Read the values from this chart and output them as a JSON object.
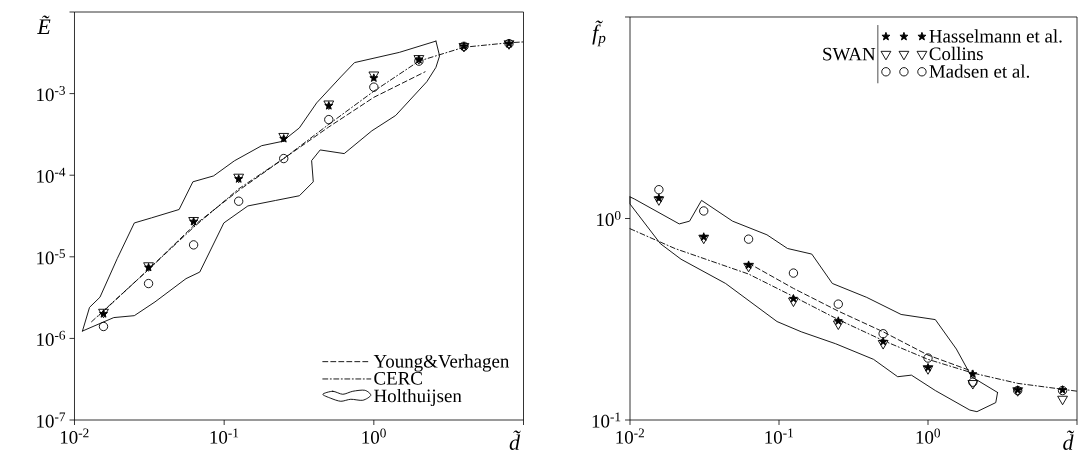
{
  "chart_data": [
    {
      "type": "scatter",
      "xlabel": "d̃",
      "ylabel": "Ẽ",
      "log": "xy",
      "legend": "bottom right",
      "xlim": [
        0.01,
        10
      ],
      "ylim": [
        1e-07,
        0.01
      ],
      "xticks": [
        {
          "value": 0.01,
          "label": "10$^{-2}$"
        },
        {
          "value": 0.1,
          "label": "10$^{-1}$"
        },
        {
          "value": 1,
          "label": "10$^{0}$"
        },
        {
          "value": 10,
          "label": null
        }
      ],
      "yticks": [
        {
          "value": 1e-07,
          "label": "10$^{-7}$"
        },
        {
          "value": 1e-06,
          "label": "10$^{-6}$"
        },
        {
          "value": 1e-05,
          "label": "10$^{-5}$"
        },
        {
          "value": 0.0001,
          "label": "10$^{-4}$"
        },
        {
          "value": 0.001,
          "label": "10$^{-3}$"
        },
        {
          "value": 0.01,
          "label": null
        }
      ],
      "x": [
        0.015625,
        0.03125,
        0.0625,
        0.125,
        0.25,
        0.5,
        1,
        2,
        4,
        8
      ],
      "series": [
        {
          "name": "Young&Verhagen",
          "type": "line",
          "color": "#000000",
          "line_style": "dashed",
          "marker": "none",
          "x": [
            0.0145,
            0.03125,
            0.0625,
            0.125,
            0.25,
            0.5,
            1,
            2.2
          ],
          "values": [
            1.9e-06,
            7e-06,
            2.4e-05,
            6.5e-05,
            0.00016,
            0.00039,
            0.0009,
            0.00185
          ]
        },
        {
          "name": "CERC",
          "type": "line",
          "color": "#000000",
          "line_style": "dashdot",
          "marker": "none",
          "x": [
            0.013,
            0.03125,
            0.0625,
            0.125,
            0.25,
            0.5,
            1,
            2,
            4,
            8,
            10
          ],
          "values": [
            1.6e-06,
            7e-06,
            2.3e-05,
            6.8e-05,
            0.00016,
            0.00042,
            0.00107,
            0.0025,
            0.0037,
            0.0042,
            0.0043
          ]
        },
        {
          "name": "Holthuijsen",
          "type": "line",
          "color": "#000000",
          "line_style": "solid",
          "marker": "none",
          "x": [
            0.0113,
            0.0126,
            0.0148,
            0.0193,
            0.0251,
            0.0327,
            0.05,
            0.0618,
            0.0849,
            0.117,
            0.178,
            0.245,
            0.318,
            0.415,
            0.601,
            0.743,
            1.48,
            2.6
          ],
          "values": [
            1.23e-06,
            2.4e-06,
            3.2e-06,
            9.5e-06,
            2.6e-05,
            3e-05,
            3.8e-05,
            8.3e-05,
            9.8e-05,
            0.00015,
            0.00023,
            0.00026,
            0.00038,
            0.00077,
            0.0016,
            0.0024,
            0.0032,
            0.0044
          ]
        },
        {
          "type": "line",
          "color": "#000000",
          "line_style": "solid",
          "marker": "none",
          "x": [
            0.0113,
            0.0133,
            0.0183,
            0.0251,
            0.0345,
            0.0556,
            0.0687,
            0.0995,
            0.144,
            0.22,
            0.318,
            0.394,
            0.384,
            0.438,
            0.634,
            0.97,
            1.4,
            2.26,
            2.6,
            2.75,
            2.6
          ],
          "values": [
            1.23e-06,
            1.4e-06,
            1.8e-06,
            1.9e-06,
            2.8e-06,
            5.4e-06,
            6.5e-06,
            2.6e-05,
            4.2e-05,
            4.9e-05,
            5.6e-05,
            8.3e-05,
            0.000151,
            0.000204,
            0.000184,
            0.00035,
            0.00054,
            0.0014,
            0.0021,
            0.0029,
            0.0044
          ]
        },
        {
          "color": "#000000",
          "marker": "triangle",
          "values": [
            2.1e-06,
            7.8e-06,
            2.8e-05,
            9.5e-05,
            0.0003,
            0.00075,
            0.0017,
            0.0027,
            0.0038,
            0.0041
          ]
        },
        {
          "color": "#000000",
          "marker": "circle",
          "values": [
            1.4e-06,
            4.7e-06,
            1.4e-05,
            4.8e-05,
            0.00016,
            0.00048,
            0.0012,
            0.0025,
            0.0038,
            0.0041
          ]
        },
        {
          "color": "#000000",
          "marker": "star",
          "values": [
            2e-06,
            7.4e-06,
            2.7e-05,
            9e-05,
            0.00028,
            0.00071,
            0.00155,
            0.0026,
            0.0038,
            0.0041
          ]
        }
      ]
    },
    {
      "type": "scatter",
      "xlabel": "d̃",
      "ylabel": "f̃$_{p}$",
      "log": "xy",
      "legend": "top right",
      "legend_title": "SWAN",
      "xlim": [
        0.01,
        10
      ],
      "ylim": [
        0.1,
        10
      ],
      "xticks": [
        {
          "value": 0.01,
          "label": "10$^{-2}$"
        },
        {
          "value": 0.1,
          "label": "10$^{-1}$"
        },
        {
          "value": 1,
          "label": "10$^{0}$"
        },
        {
          "value": 10,
          "label": null
        }
      ],
      "yticks": [
        {
          "value": 0.1,
          "label": "10$^{-1}$"
        },
        {
          "value": 1,
          "label": "10$^{0}$"
        },
        {
          "value": 10,
          "label": null
        }
      ],
      "x": [
        0.015625,
        0.03125,
        0.0625,
        0.125,
        0.25,
        0.5,
        1,
        2,
        4,
        8
      ],
      "series": [
        {
          "name": "Hasselmann et al.",
          "color": "#000000",
          "marker": "star",
          "values": [
            1.26,
            0.81,
            0.587,
            0.4,
            0.31,
            0.245,
            0.182,
            0.169,
            0.141,
            0.141
          ]
        },
        {
          "name": "Collins",
          "color": "#000000",
          "marker": "triangle",
          "values": [
            1.24,
            0.8,
            0.58,
            0.39,
            0.3,
            0.24,
            0.18,
            0.152,
            0.14,
            0.127
          ]
        },
        {
          "name": "Madsen et al.",
          "color": "#000000",
          "marker": "circle",
          "values": [
            1.39,
            1.09,
            0.79,
            0.536,
            0.376,
            0.268,
            0.203,
            0.154,
            0.14,
            0.14
          ]
        },
        {
          "type": "line",
          "color": "#000000",
          "line_style": "dashed",
          "marker": "none",
          "x": [
            0.0625,
            0.125,
            0.25,
            0.5,
            1,
            2
          ],
          "values": [
            0.6,
            0.45,
            0.347,
            0.274,
            0.21,
            0.174
          ]
        },
        {
          "type": "line",
          "color": "#000000",
          "line_style": "dashdot",
          "marker": "none",
          "x": [
            0.01,
            0.02,
            0.0625,
            0.125,
            0.25,
            0.5,
            1,
            2,
            4,
            10
          ],
          "values": [
            0.89,
            0.71,
            0.53,
            0.41,
            0.315,
            0.248,
            0.2,
            0.171,
            0.152,
            0.139
          ]
        },
        {
          "type": "line",
          "color": "#000000",
          "line_style": "solid",
          "marker": "none",
          "x": [
            0.01,
            0.0107,
            0.0214,
            0.0251,
            0.0302,
            0.0488,
            0.083,
            0.114,
            0.166,
            0.228,
            0.388,
            0.66,
            1.12,
            1.55,
            1.96,
            2.93
          ],
          "values": [
            1.28,
            1.25,
            0.94,
            0.97,
            1.23,
            0.97,
            0.83,
            0.71,
            0.666,
            0.476,
            0.406,
            0.334,
            0.315,
            0.225,
            0.164,
            0.137
          ]
        },
        {
          "type": "line",
          "color": "#000000",
          "line_style": "solid",
          "marker": "none",
          "x": [
            0.01,
            0.01,
            0.016,
            0.022,
            0.0438,
            0.097,
            0.141,
            0.24,
            0.431,
            0.626,
            0.774,
            1.12,
            1.91,
            2.13,
            2.85,
            2.93
          ],
          "values": [
            1.28,
            1.18,
            0.75,
            0.628,
            0.476,
            0.308,
            0.274,
            0.239,
            0.2,
            0.164,
            0.167,
            0.14,
            0.112,
            0.11,
            0.122,
            0.137
          ]
        }
      ]
    }
  ]
}
